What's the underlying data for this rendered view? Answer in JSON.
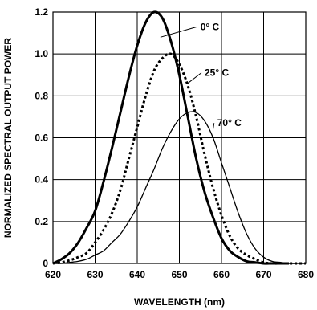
{
  "chart_data": {
    "type": "line",
    "title": "",
    "xlabel": "WAVELENGTH (nm)",
    "ylabel": "NORMALIZED SPECTRAL OUTPUT POWER",
    "xlim": [
      620,
      680
    ],
    "ylim": [
      0,
      1.2
    ],
    "grid": true,
    "x_ticks": [
      "620",
      "630",
      "640",
      "650",
      "660",
      "670",
      "680"
    ],
    "y_ticks": [
      "0",
      "0.2",
      "0.4",
      "0.6",
      "0.8",
      "1.0",
      "1.2"
    ],
    "series": [
      {
        "name": "0° C",
        "style": "thick-solid",
        "color": "#000000",
        "x": [
          620,
          622,
          624,
          626,
          628,
          630,
          632,
          634,
          636,
          638,
          640,
          642,
          644,
          646,
          648,
          650,
          652,
          654,
          656,
          658,
          660,
          662,
          664,
          666,
          668,
          670,
          672,
          674,
          676
        ],
        "y": [
          0.0,
          0.02,
          0.05,
          0.1,
          0.17,
          0.25,
          0.39,
          0.55,
          0.72,
          0.89,
          1.04,
          1.15,
          1.2,
          1.17,
          1.06,
          0.9,
          0.7,
          0.5,
          0.34,
          0.22,
          0.12,
          0.06,
          0.03,
          0.01,
          0.005,
          0.0,
          0.0,
          0.0,
          0.0
        ]
      },
      {
        "name": "25° C",
        "style": "dotted",
        "color": "#000000",
        "x": [
          620,
          622,
          624,
          626,
          628,
          630,
          632,
          634,
          636,
          638,
          640,
          642,
          644,
          646,
          648,
          650,
          652,
          654,
          656,
          658,
          660,
          662,
          664,
          666,
          668,
          670,
          672,
          674,
          676,
          678,
          680
        ],
        "y": [
          0.0,
          0.005,
          0.015,
          0.03,
          0.05,
          0.1,
          0.16,
          0.24,
          0.35,
          0.5,
          0.65,
          0.8,
          0.92,
          0.98,
          1.0,
          0.95,
          0.85,
          0.7,
          0.52,
          0.36,
          0.23,
          0.13,
          0.07,
          0.04,
          0.02,
          0.005,
          0.0,
          0.0,
          0.0,
          0.0,
          0.0
        ]
      },
      {
        "name": "70° C",
        "style": "thin-solid",
        "color": "#000000",
        "x": [
          620,
          622,
          624,
          626,
          628,
          630,
          632,
          634,
          636,
          638,
          640,
          642,
          644,
          646,
          648,
          650,
          652,
          654,
          656,
          658,
          660,
          662,
          664,
          666,
          668,
          670,
          672,
          674,
          676,
          678,
          680
        ],
        "y": [
          0.0,
          0.0,
          0.005,
          0.01,
          0.02,
          0.04,
          0.06,
          0.1,
          0.14,
          0.2,
          0.27,
          0.36,
          0.45,
          0.55,
          0.63,
          0.69,
          0.72,
          0.72,
          0.68,
          0.6,
          0.48,
          0.36,
          0.24,
          0.14,
          0.07,
          0.03,
          0.01,
          0.005,
          0.0,
          0.0,
          0.0
        ]
      }
    ],
    "annotations": [
      {
        "series": 0,
        "label": "0° C",
        "x": 645.5,
        "y": 1.08,
        "label_x": 655,
        "label_y": 1.13
      },
      {
        "series": 1,
        "label": "25° C",
        "x": 652,
        "y": 0.86,
        "label_x": 656,
        "label_y": 0.91
      },
      {
        "series": 2,
        "label": "70° C",
        "x": 658,
        "y": 0.64,
        "label_x": 659,
        "label_y": 0.67
      }
    ]
  }
}
